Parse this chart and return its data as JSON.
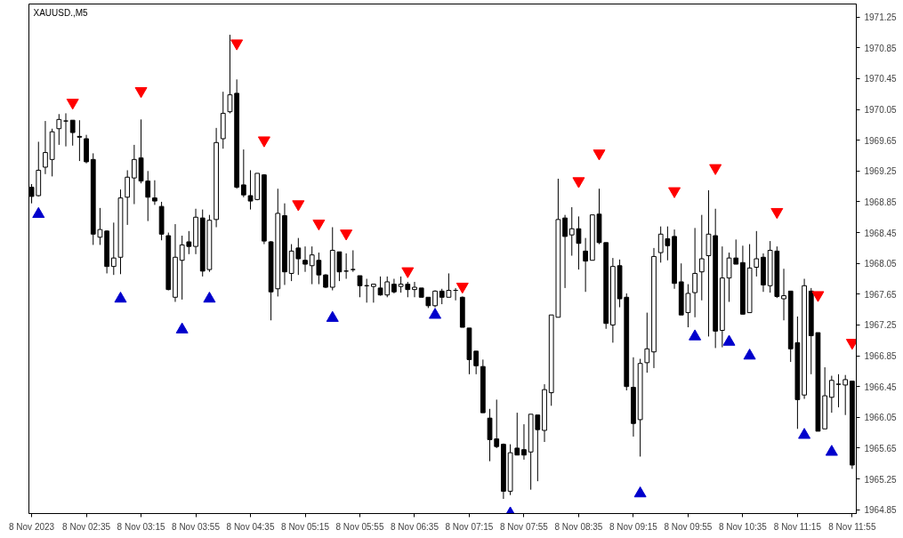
{
  "chart_data": {
    "type": "candlestick",
    "title": "XAUUSD.,M5",
    "x": [
      "2023-11-08T01:55",
      "2023-11-08T02:00",
      "2023-11-08T02:05",
      "2023-11-08T02:10",
      "2023-11-08T02:15",
      "2023-11-08T02:20",
      "2023-11-08T02:25",
      "2023-11-08T02:30",
      "2023-11-08T02:35",
      "2023-11-08T02:40",
      "2023-11-08T02:45",
      "2023-11-08T02:50",
      "2023-11-08T02:55",
      "2023-11-08T03:00",
      "2023-11-08T03:05",
      "2023-11-08T03:10",
      "2023-11-08T03:15",
      "2023-11-08T03:20",
      "2023-11-08T03:25",
      "2023-11-08T03:30",
      "2023-11-08T03:35",
      "2023-11-08T03:40",
      "2023-11-08T03:45",
      "2023-11-08T03:50",
      "2023-11-08T03:55",
      "2023-11-08T04:00",
      "2023-11-08T04:05",
      "2023-11-08T04:10",
      "2023-11-08T04:15",
      "2023-11-08T04:20",
      "2023-11-08T04:25",
      "2023-11-08T04:30",
      "2023-11-08T04:35",
      "2023-11-08T04:40",
      "2023-11-08T04:45",
      "2023-11-08T04:50",
      "2023-11-08T04:55",
      "2023-11-08T05:00",
      "2023-11-08T05:05",
      "2023-11-08T05:10",
      "2023-11-08T05:15",
      "2023-11-08T05:20",
      "2023-11-08T05:25",
      "2023-11-08T05:30",
      "2023-11-08T05:35",
      "2023-11-08T05:40",
      "2023-11-08T05:45",
      "2023-11-08T05:50",
      "2023-11-08T05:55",
      "2023-11-08T06:00",
      "2023-11-08T06:05",
      "2023-11-08T06:10",
      "2023-11-08T06:15",
      "2023-11-08T06:20",
      "2023-11-08T06:25",
      "2023-11-08T06:30",
      "2023-11-08T06:35",
      "2023-11-08T06:40",
      "2023-11-08T06:45",
      "2023-11-08T06:50",
      "2023-11-08T06:55",
      "2023-11-08T07:00",
      "2023-11-08T07:05",
      "2023-11-08T07:10",
      "2023-11-08T07:15",
      "2023-11-08T07:20",
      "2023-11-08T07:25",
      "2023-11-08T07:30",
      "2023-11-08T07:35",
      "2023-11-08T07:40",
      "2023-11-08T07:45",
      "2023-11-08T07:50",
      "2023-11-08T07:55",
      "2023-11-08T08:00",
      "2023-11-08T08:05",
      "2023-11-08T08:10",
      "2023-11-08T08:15",
      "2023-11-08T08:20",
      "2023-11-08T08:25",
      "2023-11-08T08:30",
      "2023-11-08T08:35",
      "2023-11-08T08:40",
      "2023-11-08T08:45",
      "2023-11-08T08:50",
      "2023-11-08T08:55",
      "2023-11-08T09:00",
      "2023-11-08T09:05",
      "2023-11-08T09:10",
      "2023-11-08T09:15",
      "2023-11-08T09:20",
      "2023-11-08T09:25",
      "2023-11-08T09:30",
      "2023-11-08T09:35",
      "2023-11-08T09:40",
      "2023-11-08T09:45",
      "2023-11-08T09:50",
      "2023-11-08T09:55",
      "2023-11-08T10:00",
      "2023-11-08T10:05",
      "2023-11-08T10:10",
      "2023-11-08T10:15",
      "2023-11-08T10:20",
      "2023-11-08T10:25",
      "2023-11-08T10:30",
      "2023-11-08T10:35",
      "2023-11-08T10:40",
      "2023-11-08T10:45",
      "2023-11-08T10:50",
      "2023-11-08T10:55",
      "2023-11-08T11:00",
      "2023-11-08T11:05",
      "2023-11-08T11:10",
      "2023-11-08T11:15",
      "2023-11-08T11:20",
      "2023-11-08T11:25",
      "2023-11-08T11:30",
      "2023-11-08T11:35",
      "2023-11-08T11:40",
      "2023-11-08T11:45",
      "2023-11-08T11:50",
      "2023-11-08T11:55"
    ],
    "ohlc": [
      [
        1969.04,
        1969.08,
        1968.83,
        1968.92
      ],
      [
        1968.93,
        1969.63,
        1968.92,
        1969.26
      ],
      [
        1969.3,
        1969.9,
        1969.21,
        1969.49
      ],
      [
        1969.4,
        1969.8,
        1969.18,
        1969.76
      ],
      [
        1969.8,
        1969.99,
        1969.59,
        1969.92
      ],
      [
        1969.9,
        1970.0,
        1969.57,
        1969.9
      ],
      [
        1969.91,
        1969.91,
        1969.58,
        1969.75
      ],
      [
        1969.7,
        1969.91,
        1969.38,
        1969.69
      ],
      [
        1969.67,
        1969.72,
        1969.35,
        1969.37
      ],
      [
        1969.4,
        1969.48,
        1968.29,
        1968.43
      ],
      [
        1968.39,
        1968.77,
        1968.29,
        1968.49
      ],
      [
        1968.47,
        1968.48,
        1967.92,
        1968.01
      ],
      [
        1968.01,
        1968.58,
        1967.9,
        1968.12
      ],
      [
        1968.13,
        1969.01,
        1967.91,
        1968.9
      ],
      [
        1968.91,
        1969.26,
        1968.55,
        1969.17
      ],
      [
        1969.16,
        1969.59,
        1968.82,
        1969.4
      ],
      [
        1969.42,
        1969.92,
        1969.09,
        1969.12
      ],
      [
        1969.12,
        1969.25,
        1968.6,
        1968.91
      ],
      [
        1968.9,
        1969.13,
        1968.81,
        1968.86
      ],
      [
        1968.79,
        1968.85,
        1968.35,
        1968.43
      ],
      [
        1968.41,
        1968.45,
        1967.7,
        1967.71
      ],
      [
        1967.61,
        1968.56,
        1967.55,
        1968.13
      ],
      [
        1968.09,
        1968.41,
        1967.58,
        1968.29
      ],
      [
        1968.33,
        1968.47,
        1968.17,
        1968.27
      ],
      [
        1968.27,
        1968.76,
        1968.17,
        1968.65
      ],
      [
        1968.64,
        1968.75,
        1967.88,
        1967.95
      ],
      [
        1967.97,
        1968.68,
        1967.94,
        1968.61
      ],
      [
        1968.62,
        1969.81,
        1968.52,
        1969.62
      ],
      [
        1969.67,
        1970.28,
        1969.54,
        1970.0
      ],
      [
        1970.02,
        1971.02,
        1970.0,
        1970.24
      ],
      [
        1970.26,
        1970.44,
        1969.02,
        1969.04
      ],
      [
        1969.07,
        1969.53,
        1968.91,
        1968.94
      ],
      [
        1968.93,
        1969.26,
        1968.75,
        1968.86
      ],
      [
        1968.88,
        1969.22,
        1968.87,
        1969.22
      ],
      [
        1969.2,
        1969.21,
        1968.3,
        1968.34
      ],
      [
        1968.33,
        1968.34,
        1967.31,
        1967.68
      ],
      [
        1967.72,
        1969.02,
        1967.62,
        1968.7
      ],
      [
        1968.67,
        1968.83,
        1967.77,
        1967.94
      ],
      [
        1967.92,
        1968.3,
        1967.82,
        1968.21
      ],
      [
        1968.25,
        1968.38,
        1967.9,
        1968.11
      ],
      [
        1968.09,
        1968.27,
        1967.94,
        1968.04
      ],
      [
        1968.02,
        1968.27,
        1967.78,
        1968.16
      ],
      [
        1968.09,
        1968.19,
        1967.78,
        1967.9
      ],
      [
        1967.9,
        1967.91,
        1967.73,
        1967.74
      ],
      [
        1967.74,
        1968.52,
        1967.7,
        1968.22
      ],
      [
        1968.2,
        1968.2,
        1967.82,
        1967.94
      ],
      [
        1967.95,
        1968.18,
        1967.85,
        1967.95
      ],
      [
        1967.97,
        1968.22,
        1967.94,
        1967.97
      ],
      [
        1967.89,
        1967.89,
        1967.61,
        1967.76
      ],
      [
        1967.76,
        1967.85,
        1967.54,
        1967.76
      ],
      [
        1967.75,
        1967.78,
        1967.54,
        1967.78
      ],
      [
        1967.73,
        1967.88,
        1967.63,
        1967.64
      ],
      [
        1967.64,
        1967.88,
        1967.61,
        1967.81
      ],
      [
        1967.78,
        1967.85,
        1967.66,
        1967.68
      ],
      [
        1967.75,
        1967.88,
        1967.67,
        1967.78
      ],
      [
        1967.78,
        1967.81,
        1967.61,
        1967.71
      ],
      [
        1967.71,
        1967.81,
        1967.61,
        1967.74
      ],
      [
        1967.73,
        1967.73,
        1967.61,
        1967.61
      ],
      [
        1967.61,
        1967.61,
        1967.47,
        1967.5
      ],
      [
        1967.5,
        1967.7,
        1967.48,
        1967.69
      ],
      [
        1967.69,
        1967.72,
        1967.52,
        1967.61
      ],
      [
        1967.61,
        1967.92,
        1967.61,
        1967.7
      ],
      [
        1967.7,
        1967.73,
        1967.57,
        1967.7
      ],
      [
        1967.61,
        1967.62,
        1967.22,
        1967.22
      ],
      [
        1967.21,
        1967.21,
        1966.61,
        1966.8
      ],
      [
        1966.91,
        1966.91,
        1966.61,
        1966.72
      ],
      [
        1966.71,
        1966.8,
        1966.11,
        1966.11
      ],
      [
        1966.04,
        1966.16,
        1965.48,
        1965.76
      ],
      [
        1965.77,
        1966.28,
        1965.65,
        1965.67
      ],
      [
        1965.7,
        1965.71,
        1964.99,
        1965.09
      ],
      [
        1965.09,
        1965.7,
        1965.04,
        1965.59
      ],
      [
        1965.65,
        1966.11,
        1965.56,
        1965.56
      ],
      [
        1965.63,
        1965.96,
        1965.5,
        1965.56
      ],
      [
        1965.6,
        1966.09,
        1965.11,
        1966.09
      ],
      [
        1966.08,
        1966.08,
        1965.22,
        1965.89
      ],
      [
        1965.88,
        1966.48,
        1965.73,
        1966.41
      ],
      [
        1966.37,
        1967.38,
        1966.2,
        1967.38
      ],
      [
        1967.35,
        1969.15,
        1967.35,
        1968.62
      ],
      [
        1968.64,
        1968.68,
        1967.73,
        1968.4
      ],
      [
        1968.42,
        1968.78,
        1968.15,
        1968.5
      ],
      [
        1968.5,
        1968.66,
        1967.97,
        1968.31
      ],
      [
        1968.21,
        1968.38,
        1967.68,
        1968.08
      ],
      [
        1968.09,
        1968.68,
        1968.09,
        1968.68
      ],
      [
        1968.69,
        1969.02,
        1968.3,
        1968.32
      ],
      [
        1968.32,
        1968.32,
        1967.2,
        1967.27
      ],
      [
        1967.25,
        1968.12,
        1967.02,
        1968.01
      ],
      [
        1968.02,
        1968.1,
        1967.48,
        1967.59
      ],
      [
        1967.61,
        1967.66,
        1966.4,
        1966.45
      ],
      [
        1966.44,
        1966.83,
        1965.8,
        1965.97
      ],
      [
        1966.02,
        1966.81,
        1965.54,
        1966.75
      ],
      [
        1966.76,
        1967.41,
        1966.63,
        1966.94
      ],
      [
        1966.9,
        1968.25,
        1966.69,
        1968.14
      ],
      [
        1968.19,
        1968.53,
        1968.06,
        1968.43
      ],
      [
        1968.37,
        1968.53,
        1968.09,
        1968.28
      ],
      [
        1968.4,
        1968.49,
        1967.72,
        1967.79
      ],
      [
        1967.81,
        1968.05,
        1967.38,
        1967.38
      ],
      [
        1967.41,
        1967.78,
        1967.22,
        1967.66
      ],
      [
        1967.67,
        1968.51,
        1967.35,
        1967.92
      ],
      [
        1967.94,
        1968.68,
        1967.57,
        1968.11
      ],
      [
        1968.15,
        1969.0,
        1967.1,
        1968.43
      ],
      [
        1968.41,
        1968.76,
        1966.95,
        1967.17
      ],
      [
        1967.18,
        1968.27,
        1966.96,
        1967.86
      ],
      [
        1967.86,
        1968.19,
        1967.55,
        1968.12
      ],
      [
        1968.12,
        1968.36,
        1968.04,
        1968.04
      ],
      [
        1968.06,
        1968.28,
        1967.39,
        1967.39
      ],
      [
        1967.41,
        1968.3,
        1967.41,
        1967.99
      ],
      [
        1968.0,
        1968.47,
        1967.88,
        1968.11
      ],
      [
        1968.13,
        1968.18,
        1967.68,
        1967.77
      ],
      [
        1967.76,
        1968.34,
        1967.67,
        1968.22
      ],
      [
        1968.21,
        1968.27,
        1967.6,
        1967.62
      ],
      [
        1967.59,
        1967.98,
        1967.31,
        1967.63
      ],
      [
        1967.69,
        1967.69,
        1966.77,
        1966.94
      ],
      [
        1967.02,
        1967.36,
        1965.9,
        1966.28
      ],
      [
        1966.34,
        1967.85,
        1966.29,
        1967.76
      ],
      [
        1967.69,
        1967.73,
        1966.61,
        1967.11
      ],
      [
        1967.15,
        1967.15,
        1965.87,
        1965.87
      ],
      [
        1965.9,
        1966.7,
        1965.9,
        1966.33
      ],
      [
        1966.31,
        1966.59,
        1966.11,
        1966.53
      ],
      [
        1966.48,
        1966.61,
        1966.18,
        1966.48
      ],
      [
        1966.47,
        1966.6,
        1966.08,
        1966.54
      ],
      [
        1966.52,
        1966.52,
        1965.38,
        1965.43
      ]
    ],
    "series": [
      {
        "type": "scatter",
        "marker": "triangle",
        "color": "#ff0000",
        "x": [
          "2023-11-08T02:25",
          "2023-11-08T03:15",
          "2023-11-08T04:25",
          "2023-11-08T04:45",
          "2023-11-08T05:10",
          "2023-11-08T05:25",
          "2023-11-08T05:45",
          "2023-11-08T06:30",
          "2023-11-08T07:10",
          "2023-11-08T08:35",
          "2023-11-08T08:50",
          "2023-11-08T09:45",
          "2023-11-08T10:15",
          "2023-11-08T11:00",
          "2023-11-08T11:30",
          "2023-11-08T11:55"
        ],
        "values": [
          1970.14,
          1970.29,
          1970.91,
          1969.65,
          1968.82,
          1968.57,
          1968.44,
          1967.95,
          1967.75,
          1969.12,
          1969.48,
          1968.99,
          1969.29,
          1968.72,
          1967.64,
          1967.02
        ]
      },
      {
        "type": "scatter",
        "marker": "triangle",
        "color": "#0000cc",
        "x": [
          "2023-11-08T02:00",
          "2023-11-08T03:00",
          "2023-11-08T03:45",
          "2023-11-08T04:05",
          "2023-11-08T05:35",
          "2023-11-08T06:50",
          "2023-11-08T07:45",
          "2023-11-08T09:20",
          "2023-11-08T10:00",
          "2023-11-08T10:25",
          "2023-11-08T10:40",
          "2023-11-08T11:20",
          "2023-11-08T11:40"
        ],
        "values": [
          1968.69,
          1967.59,
          1967.19,
          1967.59,
          1967.34,
          1967.38,
          1964.8,
          1965.06,
          1967.1,
          1967.03,
          1966.85,
          1965.82,
          1965.6
        ]
      }
    ],
    "xlim": [
      "2023-11-08T01:53",
      "2023-11-08T11:58"
    ],
    "xticks": [
      {
        "value": "2023-11-08T01:55",
        "label": "8 Nov 2023"
      },
      {
        "value": "2023-11-08T02:35",
        "label": "8 Nov 02:35"
      },
      {
        "value": "2023-11-08T03:15",
        "label": "8 Nov 03:15"
      },
      {
        "value": "2023-11-08T03:55",
        "label": "8 Nov 03:55"
      },
      {
        "value": "2023-11-08T04:35",
        "label": "8 Nov 04:35"
      },
      {
        "value": "2023-11-08T05:15",
        "label": "8 Nov 05:15"
      },
      {
        "value": "2023-11-08T05:55",
        "label": "8 Nov 05:55"
      },
      {
        "value": "2023-11-08T06:35",
        "label": "8 Nov 06:35"
      },
      {
        "value": "2023-11-08T07:15",
        "label": "8 Nov 07:15"
      },
      {
        "value": "2023-11-08T07:55",
        "label": "8 Nov 07:55"
      },
      {
        "value": "2023-11-08T08:35",
        "label": "8 Nov 08:35"
      },
      {
        "value": "2023-11-08T09:15",
        "label": "8 Nov 09:15"
      },
      {
        "value": "2023-11-08T09:55",
        "label": "8 Nov 09:55"
      },
      {
        "value": "2023-11-08T10:35",
        "label": "8 Nov 10:35"
      },
      {
        "value": "2023-11-08T11:15",
        "label": "8 Nov 11:15"
      },
      {
        "value": "2023-11-08T11:55",
        "label": "8 Nov 11:55"
      }
    ],
    "ylim": [
      1964.8,
      1971.42
    ],
    "yticks": [
      1964.85,
      1965.25,
      1965.65,
      1966.05,
      1966.45,
      1966.85,
      1967.25,
      1967.65,
      1968.05,
      1968.45,
      1968.85,
      1969.25,
      1969.65,
      1970.05,
      1970.45,
      1970.85,
      1971.25
    ]
  }
}
